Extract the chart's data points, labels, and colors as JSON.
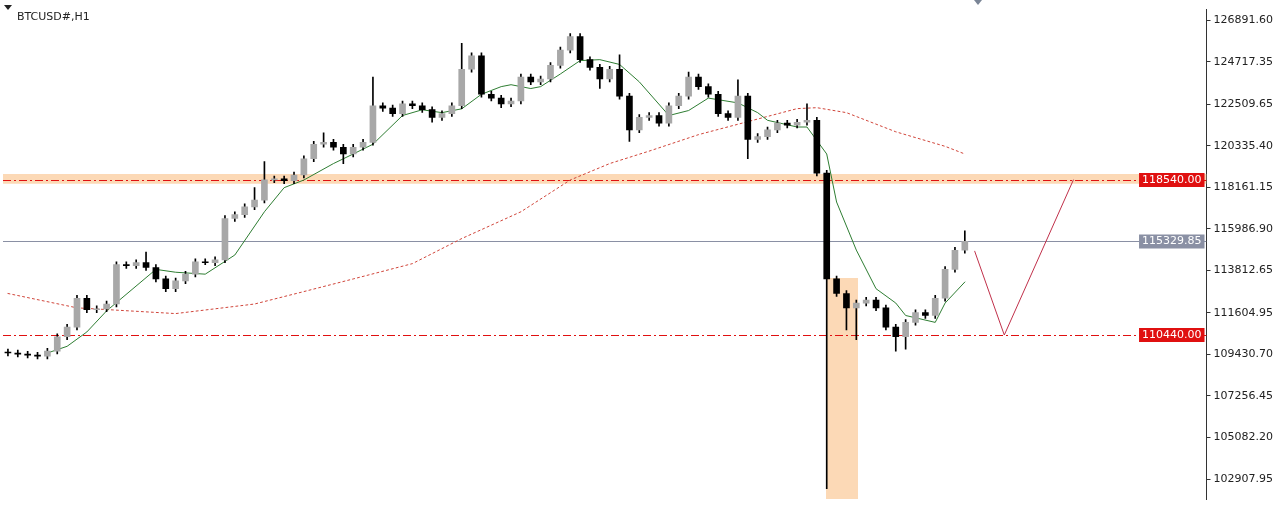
{
  "chart_data": {
    "type": "candlestick",
    "title": "BTCUSD#,H1",
    "categories": [
      null,
      null,
      null,
      null,
      null,
      null,
      null,
      null,
      null,
      null,
      null,
      null,
      null,
      null,
      null,
      null,
      null,
      null,
      null,
      null,
      null,
      null,
      null,
      null,
      null,
      null,
      null,
      null,
      null,
      null,
      null,
      null,
      null,
      null,
      null,
      null,
      null,
      null,
      null,
      null,
      null,
      null,
      null,
      null,
      null,
      null,
      null,
      null,
      null,
      null,
      null,
      null,
      null,
      null,
      null,
      null,
      null,
      null,
      null,
      null,
      null,
      null,
      null,
      null,
      null,
      null,
      null,
      null,
      null,
      null,
      null,
      null,
      null,
      null,
      null,
      null,
      null,
      null,
      null,
      null,
      null,
      null,
      null,
      null,
      null,
      null,
      null,
      null,
      null,
      null,
      null,
      null,
      null,
      null,
      null,
      null,
      null,
      null,
      null,
      null,
      null,
      null,
      null,
      null,
      null,
      null,
      null,
      null,
      null,
      null,
      null,
      null,
      null,
      null,
      null,
      null,
      null,
      null,
      null,
      null,
      null,
      null
    ],
    "ohlc": [
      [
        109550,
        109700,
        109350,
        109500
      ],
      [
        109500,
        109650,
        109290,
        109440
      ],
      [
        109440,
        109590,
        109240,
        109390
      ],
      [
        109390,
        109540,
        109190,
        109340
      ],
      [
        109340,
        109750,
        109190,
        109600
      ],
      [
        109600,
        110500,
        109450,
        110350
      ],
      [
        110350,
        111000,
        110200,
        110850
      ],
      [
        110850,
        112510,
        110700,
        112360
      ],
      [
        112360,
        112510,
        111610,
        111760
      ],
      [
        111760,
        111960,
        111610,
        111810
      ],
      [
        111810,
        112210,
        111660,
        112060
      ],
      [
        112060,
        114270,
        111910,
        114120
      ],
      [
        114120,
        114270,
        113920,
        114070
      ],
      [
        114070,
        114370,
        113920,
        114220
      ],
      [
        114220,
        114770,
        113820,
        113970
      ],
      [
        113970,
        114120,
        113220,
        113370
      ],
      [
        113370,
        113520,
        112710,
        112860
      ],
      [
        112860,
        113420,
        112710,
        113270
      ],
      [
        113270,
        113770,
        113120,
        113620
      ],
      [
        113620,
        114420,
        113470,
        114270
      ],
      [
        114270,
        114420,
        114120,
        114220
      ],
      [
        114220,
        114520,
        114070,
        114370
      ],
      [
        114370,
        116680,
        114220,
        116530
      ],
      [
        116530,
        116880,
        116380,
        116730
      ],
      [
        116730,
        117290,
        116580,
        117140
      ],
      [
        117140,
        118140,
        116990,
        117490
      ],
      [
        117490,
        119500,
        117340,
        118550
      ],
      [
        118550,
        118750,
        118400,
        118600
      ],
      [
        118600,
        118750,
        118350,
        118500
      ],
      [
        118500,
        118950,
        118350,
        118800
      ],
      [
        118800,
        119800,
        118650,
        119650
      ],
      [
        119650,
        120560,
        119500,
        120410
      ],
      [
        120410,
        121010,
        120260,
        120510
      ],
      [
        120510,
        120660,
        120100,
        120250
      ],
      [
        120250,
        120400,
        119400,
        119900
      ],
      [
        119900,
        120400,
        119750,
        120250
      ],
      [
        120250,
        120660,
        120100,
        120510
      ],
      [
        120510,
        123920,
        120360,
        122420
      ],
      [
        122420,
        122570,
        122120,
        122300
      ],
      [
        122300,
        122450,
        121860,
        122010
      ],
      [
        122010,
        122670,
        121860,
        122520
      ],
      [
        122520,
        122670,
        122270,
        122420
      ],
      [
        122420,
        122570,
        122070,
        122220
      ],
      [
        122220,
        122370,
        121560,
        121810
      ],
      [
        121810,
        122160,
        121660,
        122010
      ],
      [
        122010,
        122570,
        121860,
        122420
      ],
      [
        122420,
        125680,
        122270,
        124330
      ],
      [
        124330,
        125180,
        124180,
        125030
      ],
      [
        125030,
        125180,
        122870,
        123020
      ],
      [
        123020,
        123170,
        122670,
        122820
      ],
      [
        122820,
        122970,
        122320,
        122520
      ],
      [
        122520,
        122820,
        122370,
        122670
      ],
      [
        122670,
        124070,
        122520,
        123920
      ],
      [
        123920,
        124070,
        123520,
        123670
      ],
      [
        123670,
        123970,
        123520,
        123820
      ],
      [
        123820,
        124680,
        123670,
        124530
      ],
      [
        124530,
        125480,
        124380,
        125330
      ],
      [
        125330,
        126190,
        125180,
        126040
      ],
      [
        126040,
        126190,
        124680,
        124830
      ],
      [
        124830,
        124980,
        124280,
        124430
      ],
      [
        124430,
        124580,
        123320,
        123820
      ],
      [
        123820,
        124480,
        123670,
        124330
      ],
      [
        124330,
        125080,
        122770,
        122920
      ],
      [
        122920,
        123070,
        120560,
        121160
      ],
      [
        121160,
        121960,
        121010,
        121810
      ],
      [
        121810,
        122060,
        121660,
        121910
      ],
      [
        121910,
        122060,
        121360,
        121510
      ],
      [
        121510,
        122570,
        121360,
        122420
      ],
      [
        122420,
        123070,
        122270,
        122920
      ],
      [
        122920,
        124180,
        122770,
        123920
      ],
      [
        123920,
        124070,
        123270,
        123420
      ],
      [
        123420,
        123570,
        122870,
        123020
      ],
      [
        123020,
        123170,
        121860,
        122010
      ],
      [
        122010,
        122160,
        121660,
        121810
      ],
      [
        121810,
        123770,
        121660,
        122920
      ],
      [
        122920,
        123070,
        119650,
        120660
      ],
      [
        120660,
        120960,
        120510,
        120810
      ],
      [
        120810,
        121310,
        120660,
        121160
      ],
      [
        121160,
        121660,
        121010,
        121510
      ],
      [
        121510,
        121660,
        121260,
        121410
      ],
      [
        121410,
        121710,
        121260,
        121560
      ],
      [
        121560,
        122520,
        121410,
        121660
      ],
      [
        121660,
        121810,
        118750,
        118900
      ],
      [
        118900,
        119050,
        102410,
        113370
      ],
      [
        113370,
        113520,
        112460,
        112610
      ],
      [
        112610,
        112760,
        110700,
        111860
      ],
      [
        111860,
        112260,
        110200,
        112110
      ],
      [
        112110,
        112410,
        111960,
        112260
      ],
      [
        112260,
        112410,
        111710,
        111860
      ],
      [
        111860,
        112010,
        110700,
        110850
      ],
      [
        110850,
        111000,
        109600,
        110350
      ],
      [
        110350,
        111250,
        109700,
        111100
      ],
      [
        111100,
        111760,
        110950,
        111610
      ],
      [
        111610,
        111760,
        111310,
        111460
      ],
      [
        111460,
        112510,
        111310,
        112360
      ],
      [
        112360,
        114020,
        112210,
        113870
      ],
      [
        113870,
        115020,
        113720,
        114870
      ],
      [
        114870,
        115880,
        114720,
        115330
      ],
      null,
      null,
      null,
      null,
      null,
      null,
      null,
      null,
      null,
      null,
      null,
      null,
      null,
      null,
      null,
      null,
      null,
      null,
      null,
      null,
      null,
      null,
      null,
      null
    ],
    "color": "#000000",
    "colors": [
      "#000000",
      "#000000",
      "#000000",
      "#000000",
      "#a8a8a8",
      "#a8a8a8",
      "#a8a8a8",
      "#a8a8a8",
      "#000000",
      "#a8a8a8",
      "#a8a8a8",
      "#a8a8a8",
      "#000000",
      "#a8a8a8",
      "#000000",
      "#000000",
      "#000000",
      "#a8a8a8",
      "#a8a8a8",
      "#a8a8a8",
      "#000000",
      "#a8a8a8",
      "#a8a8a8",
      "#a8a8a8",
      "#a8a8a8",
      "#a8a8a8",
      "#a8a8a8",
      "#a8a8a8",
      "#000000",
      "#a8a8a8",
      "#a8a8a8",
      "#a8a8a8",
      "#a8a8a8",
      "#000000",
      "#000000",
      "#a8a8a8",
      "#a8a8a8",
      "#a8a8a8",
      "#000000",
      "#000000",
      "#a8a8a8",
      "#000000",
      "#000000",
      "#000000",
      "#a8a8a8",
      "#a8a8a8",
      "#a8a8a8",
      "#a8a8a8",
      "#000000",
      "#000000",
      "#000000",
      "#a8a8a8",
      "#a8a8a8",
      "#000000",
      "#a8a8a8",
      "#a8a8a8",
      "#a8a8a8",
      "#a8a8a8",
      "#000000",
      "#000000",
      "#000000",
      "#a8a8a8",
      "#000000",
      "#000000",
      "#a8a8a8",
      "#a8a8a8",
      "#000000",
      "#a8a8a8",
      "#a8a8a8",
      "#a8a8a8",
      "#000000",
      "#000000",
      "#000000",
      "#000000",
      "#a8a8a8",
      "#000000",
      "#a8a8a8",
      "#a8a8a8",
      "#a8a8a8",
      "#000000",
      "#a8a8a8",
      "#a8a8a8",
      "#000000",
      "#000000",
      "#000000",
      "#000000",
      "#a8a8a8",
      "#a8a8a8",
      "#000000",
      "#000000",
      "#000000",
      "#a8a8a8",
      "#a8a8a8",
      "#000000",
      "#a8a8a8",
      "#a8a8a8",
      "#a8a8a8",
      "#a8a8a8",
      null,
      null,
      null,
      null,
      null,
      null,
      null,
      null,
      null,
      null,
      null,
      null,
      null,
      null,
      null,
      null,
      null,
      null,
      null,
      null,
      null,
      null,
      null,
      null
    ],
    "series": [
      {
        "type": "line",
        "color": "#2e7d32",
        "line_style": "solid",
        "values": [
          null,
          null,
          null,
          null,
          109500,
          null,
          109850,
          null,
          110600,
          null,
          111700,
          null,
          null,
          null,
          null,
          113870,
          null,
          113720,
          null,
          null,
          113620,
          null,
          null,
          114620,
          null,
          null,
          116880,
          null,
          118140,
          null,
          118540,
          null,
          null,
          119400,
          null,
          119900,
          null,
          120410,
          null,
          null,
          121910,
          null,
          122210,
          null,
          122060,
          null,
          122260,
          null,
          123020,
          null,
          123420,
          123520,
          null,
          123320,
          123420,
          null,
          124080,
          null,
          124780,
          null,
          124830,
          null,
          124580,
          null,
          123670,
          null,
          null,
          121910,
          null,
          122170,
          null,
          122820,
          null,
          null,
          122570,
          null,
          122060,
          121660,
          null,
          null,
          121310,
          121310,
          null,
          119900,
          117390,
          null,
          114880,
          null,
          112860,
          null,
          112110,
          111460,
          null,
          null,
          111100,
          112110,
          null,
          113210,
          null,
          null,
          null,
          null,
          null,
          null,
          null,
          null,
          null,
          null,
          null,
          null,
          null,
          null,
          null,
          null,
          null,
          null,
          null,
          null,
          null,
          null,
          null,
          null
        ]
      },
      {
        "type": "line",
        "color": "#d0453a",
        "line_style": "dotted",
        "values": [
          112610,
          null,
          null,
          null,
          null,
          null,
          null,
          111860,
          null,
          null,
          null,
          null,
          null,
          null,
          null,
          null,
          null,
          111560,
          null,
          null,
          null,
          null,
          null,
          null,
          null,
          112060,
          null,
          null,
          null,
          null,
          112710,
          null,
          null,
          null,
          null,
          113370,
          null,
          null,
          null,
          null,
          null,
          114170,
          null,
          null,
          null,
          null,
          115480,
          null,
          null,
          null,
          null,
          null,
          116880,
          null,
          null,
          null,
          null,
          118540,
          null,
          null,
          null,
          119400,
          null,
          null,
          null,
          120050,
          null,
          null,
          null,
          null,
          120910,
          null,
          null,
          null,
          null,
          null,
          null,
          null,
          null,
          null,
          122270,
          null,
          122320,
          null,
          null,
          122060,
          null,
          null,
          null,
          null,
          121060,
          null,
          null,
          null,
          null,
          120300,
          null,
          119900,
          null,
          null,
          null,
          null,
          null,
          null,
          null,
          null,
          null,
          null,
          null,
          null,
          null,
          null,
          null,
          null,
          null,
          null,
          null,
          null,
          null,
          null,
          null,
          null
        ]
      },
      {
        "type": "line",
        "color": "#c0304a",
        "line_style": "solid",
        "values": [
          null,
          null,
          null,
          null,
          null,
          null,
          null,
          null,
          null,
          null,
          null,
          null,
          null,
          null,
          null,
          null,
          null,
          null,
          null,
          null,
          null,
          null,
          null,
          null,
          null,
          null,
          null,
          null,
          null,
          null,
          null,
          null,
          null,
          null,
          null,
          null,
          null,
          null,
          null,
          null,
          null,
          null,
          null,
          null,
          null,
          null,
          null,
          null,
          null,
          null,
          null,
          null,
          null,
          null,
          null,
          null,
          null,
          null,
          null,
          null,
          null,
          null,
          null,
          null,
          null,
          null,
          null,
          null,
          null,
          null,
          null,
          null,
          null,
          null,
          null,
          null,
          null,
          null,
          null,
          null,
          null,
          null,
          null,
          null,
          null,
          null,
          null,
          null,
          null,
          null,
          null,
          null,
          null,
          null,
          null,
          null,
          null,
          null,
          114820,
          null,
          null,
          110440,
          null,
          null,
          null,
          null,
          null,
          null,
          118540,
          null,
          null,
          null,
          null,
          null,
          null,
          null,
          null,
          null,
          null,
          null,
          null,
          null
        ]
      }
    ],
    "ylim": [
      101850,
      127445
    ],
    "yticks": [
      {
        "value": 126891.6,
        "label": "126891.60"
      },
      124717.35,
      122509.65,
      {
        "value": 120335.4,
        "label": "120335.40"
      },
      118161.15,
      {
        "value": 115986.9,
        "label": "115986.90"
      },
      113812.65,
      111604.95,
      {
        "value": 109430.7,
        "label": "109430.70"
      },
      107256.45,
      {
        "value": 105082.2,
        "label": "105082.20"
      },
      102907.95
    ],
    "tick_labels": "y",
    "grid": false,
    "legend": false,
    "marker": "none",
    "bands": [
      {
        "axis": "y",
        "from": 118340,
        "to": 118850,
        "color": "#fcd9b6"
      }
    ],
    "ref_lines": [
      {
        "axis": "y",
        "value": 118540,
        "label": "118540.00",
        "color": "#e01010",
        "line_style": "dashed"
      },
      {
        "axis": "y",
        "value": 115329.85,
        "label": "115329.85",
        "color": "#8a90a4",
        "line_style": "solid"
      },
      {
        "axis": "y",
        "value": 110440,
        "label": "110440.00",
        "color": "#e01010",
        "line_style": "dashed"
      }
    ]
  }
}
